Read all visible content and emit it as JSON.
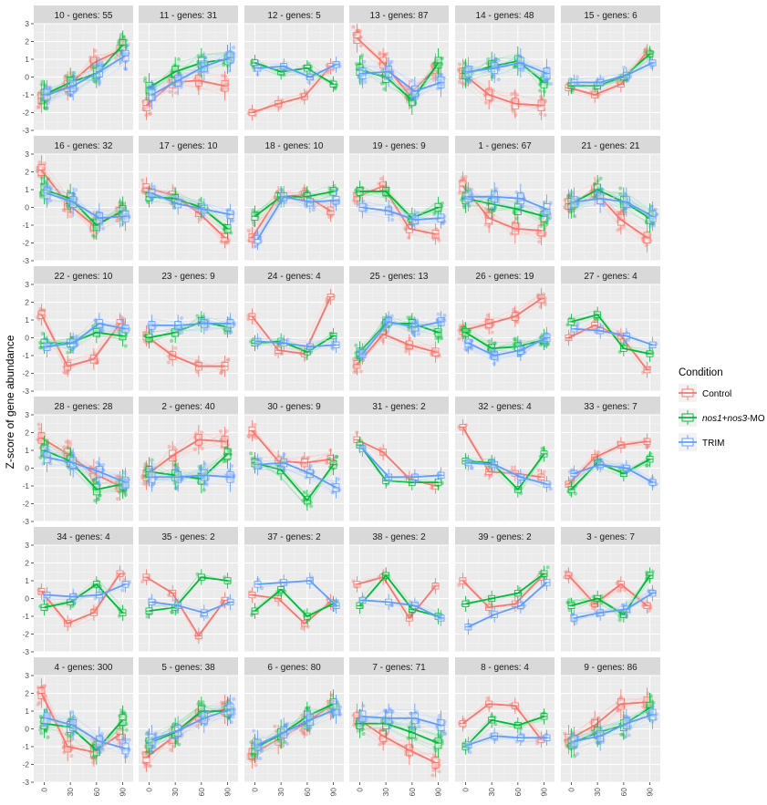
{
  "chart_data": {
    "type": "line",
    "subtype": "faceted line plot with boxplots and individual gene trajectories",
    "ylabel": "Z-score of gene abundance",
    "xlabel": "",
    "x": [
      0,
      30,
      60,
      90
    ],
    "x_tick_labels": [
      "0",
      "30",
      "60",
      "90"
    ],
    "ylim": [
      -3,
      3
    ],
    "y_ticks": [
      -3,
      -2,
      -1,
      0,
      1,
      2,
      3
    ],
    "grid": true,
    "legend": {
      "title": "Condition",
      "position": "right",
      "entries": [
        {
          "key": "control",
          "label": "Control",
          "color": "#F8766D",
          "italic_parts": []
        },
        {
          "key": "mo",
          "label_parts": [
            "nos1",
            "+",
            "nos3",
            "-MO"
          ],
          "italic_parts": [
            0,
            2
          ],
          "color": "#00BA38"
        },
        {
          "key": "trim",
          "label": "TRIM",
          "color": "#619CFF",
          "italic_parts": []
        }
      ]
    },
    "facets": [
      {
        "title": "10 - genes: 55",
        "series": {
          "control": [
            -1.2,
            -0.5,
            0.8,
            1.5
          ],
          "mo": [
            -1.0,
            -0.3,
            0.2,
            1.8
          ],
          "trim": [
            -1.0,
            -0.5,
            0.3,
            1.2
          ]
        }
      },
      {
        "title": "11 - genes: 31",
        "series": {
          "control": [
            -1.6,
            -0.3,
            -0.2,
            -0.5
          ],
          "mo": [
            -0.6,
            0.3,
            0.8,
            1.0
          ],
          "trim": [
            -1.0,
            -0.2,
            0.6,
            1.1
          ]
        }
      },
      {
        "title": "12 - genes: 5",
        "series": {
          "control": [
            -2.0,
            -1.5,
            -1.1,
            0.6
          ],
          "mo": [
            0.8,
            0.3,
            0.5,
            -0.4
          ],
          "trim": [
            0.5,
            0.6,
            0.0,
            0.7
          ]
        }
      },
      {
        "title": "13 - genes: 87",
        "series": {
          "control": [
            2.2,
            0.8,
            -1.0,
            0.5
          ],
          "mo": [
            0.4,
            0.0,
            -1.3,
            0.8
          ],
          "trim": [
            0.2,
            0.3,
            -0.8,
            -0.3
          ]
        }
      },
      {
        "title": "14 - genes: 48",
        "series": {
          "control": [
            0.2,
            -1.0,
            -1.5,
            -1.6
          ],
          "mo": [
            0.2,
            0.6,
            0.9,
            -0.3
          ],
          "trim": [
            0.3,
            0.5,
            0.8,
            0.2
          ]
        }
      },
      {
        "title": "15 - genes: 6",
        "series": {
          "control": [
            -0.6,
            -1.0,
            -0.4,
            1.4
          ],
          "mo": [
            -0.5,
            -0.5,
            0.0,
            1.3
          ],
          "trim": [
            -0.3,
            -0.3,
            0.1,
            0.8
          ]
        }
      },
      {
        "title": "16 - genes: 32",
        "series": {
          "control": [
            2.1,
            0.2,
            -1.0,
            -0.3
          ],
          "mo": [
            1.0,
            0.5,
            -1.0,
            -0.2
          ],
          "trim": [
            0.8,
            0.3,
            -0.6,
            -0.5
          ]
        }
      },
      {
        "title": "17 - genes: 10",
        "series": {
          "control": [
            1.1,
            0.7,
            -0.3,
            -1.7
          ],
          "mo": [
            0.6,
            0.5,
            0.0,
            -1.2
          ],
          "trim": [
            0.8,
            0.2,
            -0.1,
            -0.4
          ]
        }
      },
      {
        "title": "18 - genes: 10",
        "series": {
          "control": [
            -1.7,
            0.6,
            0.7,
            -0.2
          ],
          "mo": [
            -0.5,
            0.6,
            0.6,
            0.9
          ],
          "trim": [
            -1.8,
            0.6,
            0.3,
            0.4
          ]
        }
      },
      {
        "title": "19 - genes: 9",
        "series": {
          "control": [
            0.6,
            1.2,
            -1.2,
            -1.5
          ],
          "mo": [
            0.9,
            0.9,
            -0.6,
            0.0
          ],
          "trim": [
            0.0,
            -0.2,
            -0.7,
            -0.6
          ]
        }
      },
      {
        "title": "1 - genes: 67",
        "series": {
          "control": [
            1.2,
            -0.6,
            -1.2,
            -1.3
          ],
          "mo": [
            0.5,
            0.2,
            -0.1,
            -0.5
          ],
          "trim": [
            0.6,
            0.6,
            0.5,
            -0.1
          ]
        }
      },
      {
        "title": "21 - genes: 21",
        "series": {
          "control": [
            0.2,
            0.9,
            -0.7,
            -1.7
          ],
          "mo": [
            0.2,
            1.0,
            0.3,
            -0.6
          ],
          "trim": [
            0.3,
            0.5,
            0.3,
            -0.5
          ]
        }
      },
      {
        "title": "22 - genes: 10",
        "series": {
          "control": [
            1.3,
            -1.6,
            -1.2,
            0.8
          ],
          "mo": [
            -0.3,
            -0.3,
            0.3,
            0.1
          ],
          "trim": [
            -0.5,
            -0.3,
            0.8,
            0.5
          ]
        }
      },
      {
        "title": "23 - genes: 9",
        "series": {
          "control": [
            0.1,
            -1.0,
            -1.6,
            -1.6
          ],
          "mo": [
            0.0,
            0.3,
            0.9,
            0.6
          ],
          "trim": [
            0.7,
            0.7,
            0.8,
            0.8
          ]
        }
      },
      {
        "title": "24 - genes: 4",
        "series": {
          "control": [
            1.2,
            -0.7,
            -0.9,
            2.3
          ],
          "mo": [
            -0.3,
            -0.2,
            -0.8,
            0.1
          ],
          "trim": [
            -0.2,
            -0.3,
            -0.5,
            -0.4
          ]
        }
      },
      {
        "title": "25 - genes: 13",
        "series": {
          "control": [
            -1.5,
            0.2,
            -0.4,
            -0.8
          ],
          "mo": [
            -0.8,
            0.8,
            0.8,
            0.3
          ],
          "trim": [
            -0.9,
            0.9,
            0.6,
            0.9
          ]
        }
      },
      {
        "title": "26 - genes: 19",
        "series": {
          "control": [
            0.4,
            0.8,
            1.2,
            2.2
          ],
          "mo": [
            0.3,
            -0.6,
            -0.5,
            -0.1
          ],
          "trim": [
            -0.3,
            -1.0,
            -0.7,
            0.0
          ]
        }
      },
      {
        "title": "27 - genes: 4",
        "series": {
          "control": [
            0.0,
            0.7,
            0.1,
            -1.8
          ],
          "mo": [
            0.9,
            1.3,
            -0.6,
            -0.9
          ],
          "trim": [
            0.5,
            0.4,
            0.1,
            -0.4
          ]
        }
      },
      {
        "title": "28 - genes: 28",
        "series": {
          "control": [
            1.7,
            0.8,
            -0.3,
            -1.0
          ],
          "mo": [
            1.0,
            0.4,
            -1.2,
            -0.9
          ],
          "trim": [
            0.6,
            0.3,
            -0.2,
            -0.8
          ]
        }
      },
      {
        "title": "2 - genes: 40",
        "series": {
          "control": [
            -0.4,
            0.7,
            1.6,
            1.5
          ],
          "mo": [
            -0.2,
            -0.4,
            -0.6,
            0.8
          ],
          "trim": [
            -0.5,
            -0.5,
            -0.4,
            -0.5
          ]
        }
      },
      {
        "title": "30 - genes: 9",
        "series": {
          "control": [
            2.1,
            0.4,
            0.3,
            0.5
          ],
          "mo": [
            0.3,
            -0.1,
            -1.8,
            0.2
          ],
          "trim": [
            0.2,
            0.3,
            -0.3,
            -1.1
          ]
        }
      },
      {
        "title": "31 - genes: 2",
        "series": {
          "control": [
            1.6,
            0.9,
            -0.6,
            -1.0
          ],
          "mo": [
            1.3,
            -0.7,
            -0.8,
            -0.8
          ],
          "trim": [
            1.1,
            -0.5,
            -0.5,
            -0.4
          ]
        }
      },
      {
        "title": "32 - genes: 4",
        "series": {
          "control": [
            2.3,
            -0.2,
            -0.3,
            -0.5
          ],
          "mo": [
            0.4,
            0.3,
            -1.2,
            0.8
          ],
          "trim": [
            0.3,
            0.2,
            -0.5,
            -0.9
          ]
        }
      },
      {
        "title": "33 - genes: 7",
        "series": {
          "control": [
            -0.9,
            0.6,
            1.3,
            1.5
          ],
          "mo": [
            -1.2,
            0.3,
            -0.3,
            0.5
          ],
          "trim": [
            -0.3,
            0.2,
            0.0,
            -0.8
          ]
        }
      },
      {
        "title": "34 - genes: 4",
        "series": {
          "control": [
            0.4,
            -1.4,
            -0.8,
            1.4
          ],
          "mo": [
            -0.5,
            -0.2,
            0.8,
            -0.8
          ],
          "trim": [
            0.2,
            0.1,
            0.2,
            0.8
          ]
        }
      },
      {
        "title": "35 - genes: 2",
        "series": {
          "control": [
            1.2,
            0.3,
            -2.1,
            -0.1
          ],
          "mo": [
            -0.7,
            -0.5,
            1.2,
            1.0
          ],
          "trim": [
            -0.2,
            -0.4,
            -0.8,
            -0.2
          ]
        }
      },
      {
        "title": "37 - genes: 2",
        "series": {
          "control": [
            0.2,
            0.0,
            -1.4,
            -0.2
          ],
          "mo": [
            -0.7,
            0.5,
            -1.0,
            -0.3
          ],
          "trim": [
            0.8,
            0.9,
            1.0,
            -0.4
          ]
        }
      },
      {
        "title": "38 - genes: 2",
        "series": {
          "control": [
            0.8,
            1.2,
            -1.1,
            0.7
          ],
          "mo": [
            -0.4,
            1.3,
            -0.6,
            -1.0
          ],
          "trim": [
            -0.1,
            -0.2,
            -0.4,
            -1.1
          ]
        }
      },
      {
        "title": "39 - genes: 2",
        "series": {
          "control": [
            1.0,
            -0.5,
            -0.3,
            1.2
          ],
          "mo": [
            -0.3,
            0.0,
            0.3,
            1.4
          ],
          "trim": [
            -1.6,
            -0.9,
            -0.4,
            0.9
          ]
        }
      },
      {
        "title": "3 - genes: 7",
        "series": {
          "control": [
            1.3,
            -0.3,
            0.8,
            -0.4
          ],
          "mo": [
            -0.4,
            0.0,
            -0.9,
            1.3
          ],
          "trim": [
            -1.1,
            -0.8,
            -0.6,
            0.3
          ]
        }
      },
      {
        "title": "4 - genes: 300",
        "series": {
          "control": [
            2.0,
            -1.0,
            -1.3,
            -0.3
          ],
          "mo": [
            0.3,
            0.1,
            -1.2,
            0.5
          ],
          "trim": [
            0.6,
            0.2,
            -0.7,
            -1.1
          ]
        }
      },
      {
        "title": "5 - genes: 38",
        "series": {
          "control": [
            -1.6,
            -0.5,
            0.8,
            1.1
          ],
          "mo": [
            -0.8,
            -0.2,
            1.0,
            1.0
          ],
          "trim": [
            -0.6,
            -0.1,
            0.6,
            1.1
          ]
        }
      },
      {
        "title": "6 - genes: 80",
        "series": {
          "control": [
            -1.4,
            -0.6,
            0.3,
            1.3
          ],
          "mo": [
            -1.1,
            -0.3,
            0.7,
            1.4
          ],
          "trim": [
            -0.9,
            -0.2,
            0.5,
            1.1
          ]
        }
      },
      {
        "title": "7 - genes: 71",
        "series": {
          "control": [
            0.6,
            -0.4,
            -1.2,
            -1.9
          ],
          "mo": [
            0.3,
            0.3,
            -0.2,
            -0.8
          ],
          "trim": [
            0.7,
            0.6,
            0.6,
            0.2
          ]
        }
      },
      {
        "title": "8 - genes: 4",
        "series": {
          "control": [
            0.3,
            1.4,
            1.3,
            -0.6
          ],
          "mo": [
            -1.0,
            0.5,
            0.2,
            0.7
          ],
          "trim": [
            -0.9,
            -0.4,
            -0.5,
            -0.5
          ]
        }
      },
      {
        "title": "9 - genes: 86",
        "series": {
          "control": [
            -0.6,
            0.2,
            1.4,
            1.5
          ],
          "mo": [
            -0.8,
            -0.2,
            0.2,
            1.2
          ],
          "trim": [
            -0.7,
            -0.4,
            0.3,
            0.8
          ]
        }
      }
    ]
  }
}
